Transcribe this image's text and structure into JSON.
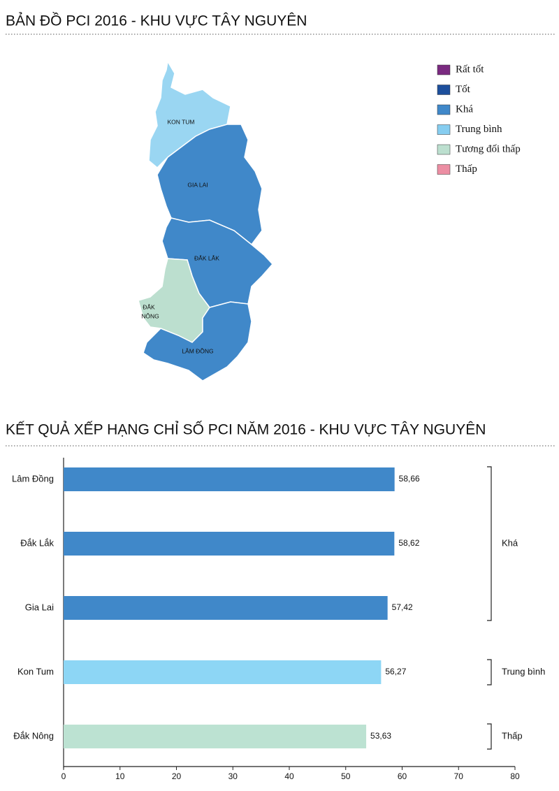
{
  "map": {
    "title": "BẢN ĐỒ PCI 2016 - KHU VỰC TÂY NGUYÊN",
    "legend": [
      {
        "label": "Rất tốt",
        "color": "#7a2a80"
      },
      {
        "label": "Tốt",
        "color": "#1d4f9c"
      },
      {
        "label": "Khá",
        "color": "#4088c9"
      },
      {
        "label": "Trung bình",
        "color": "#86cdf0"
      },
      {
        "label": "Tương đối thấp",
        "color": "#bcdfcf"
      },
      {
        "label": "Thấp",
        "color": "#ec8ea3"
      }
    ],
    "regions": [
      {
        "lines": [
          "KON TUM"
        ]
      },
      {
        "lines": [
          "GIA LAI"
        ]
      },
      {
        "lines": [
          "ĐẮK LẮK"
        ]
      },
      {
        "lines": [
          "ĐẮK",
          "NÔNG"
        ]
      },
      {
        "lines": [
          "LÂM ĐỒNG"
        ]
      }
    ]
  },
  "chart_data": {
    "type": "bar",
    "orientation": "horizontal",
    "title": "KẾT QUẢ XẾP HẠNG CHỈ SỐ PCI NĂM 2016 - KHU VỰC TÂY NGUYÊN",
    "categories": [
      "Lâm Đồng",
      "Đắk Lắk",
      "Gia Lai",
      "Kon Tum",
      "Đắk Nông"
    ],
    "values": [
      58.66,
      58.62,
      57.42,
      56.27,
      53.63
    ],
    "value_labels": [
      "58,66",
      "58,62",
      "57,42",
      "56,27",
      "53,63"
    ],
    "colors": [
      "#4088c9",
      "#4088c9",
      "#4088c9",
      "#8dd6f5",
      "#bce2d2"
    ],
    "group_labels": [
      "Khá",
      "Khá",
      "Khá",
      "Trung bình",
      "Thấp"
    ],
    "xlim": [
      0,
      80
    ],
    "xticks": [
      0,
      10,
      20,
      30,
      40,
      50,
      60,
      70,
      80
    ],
    "grid": false
  }
}
